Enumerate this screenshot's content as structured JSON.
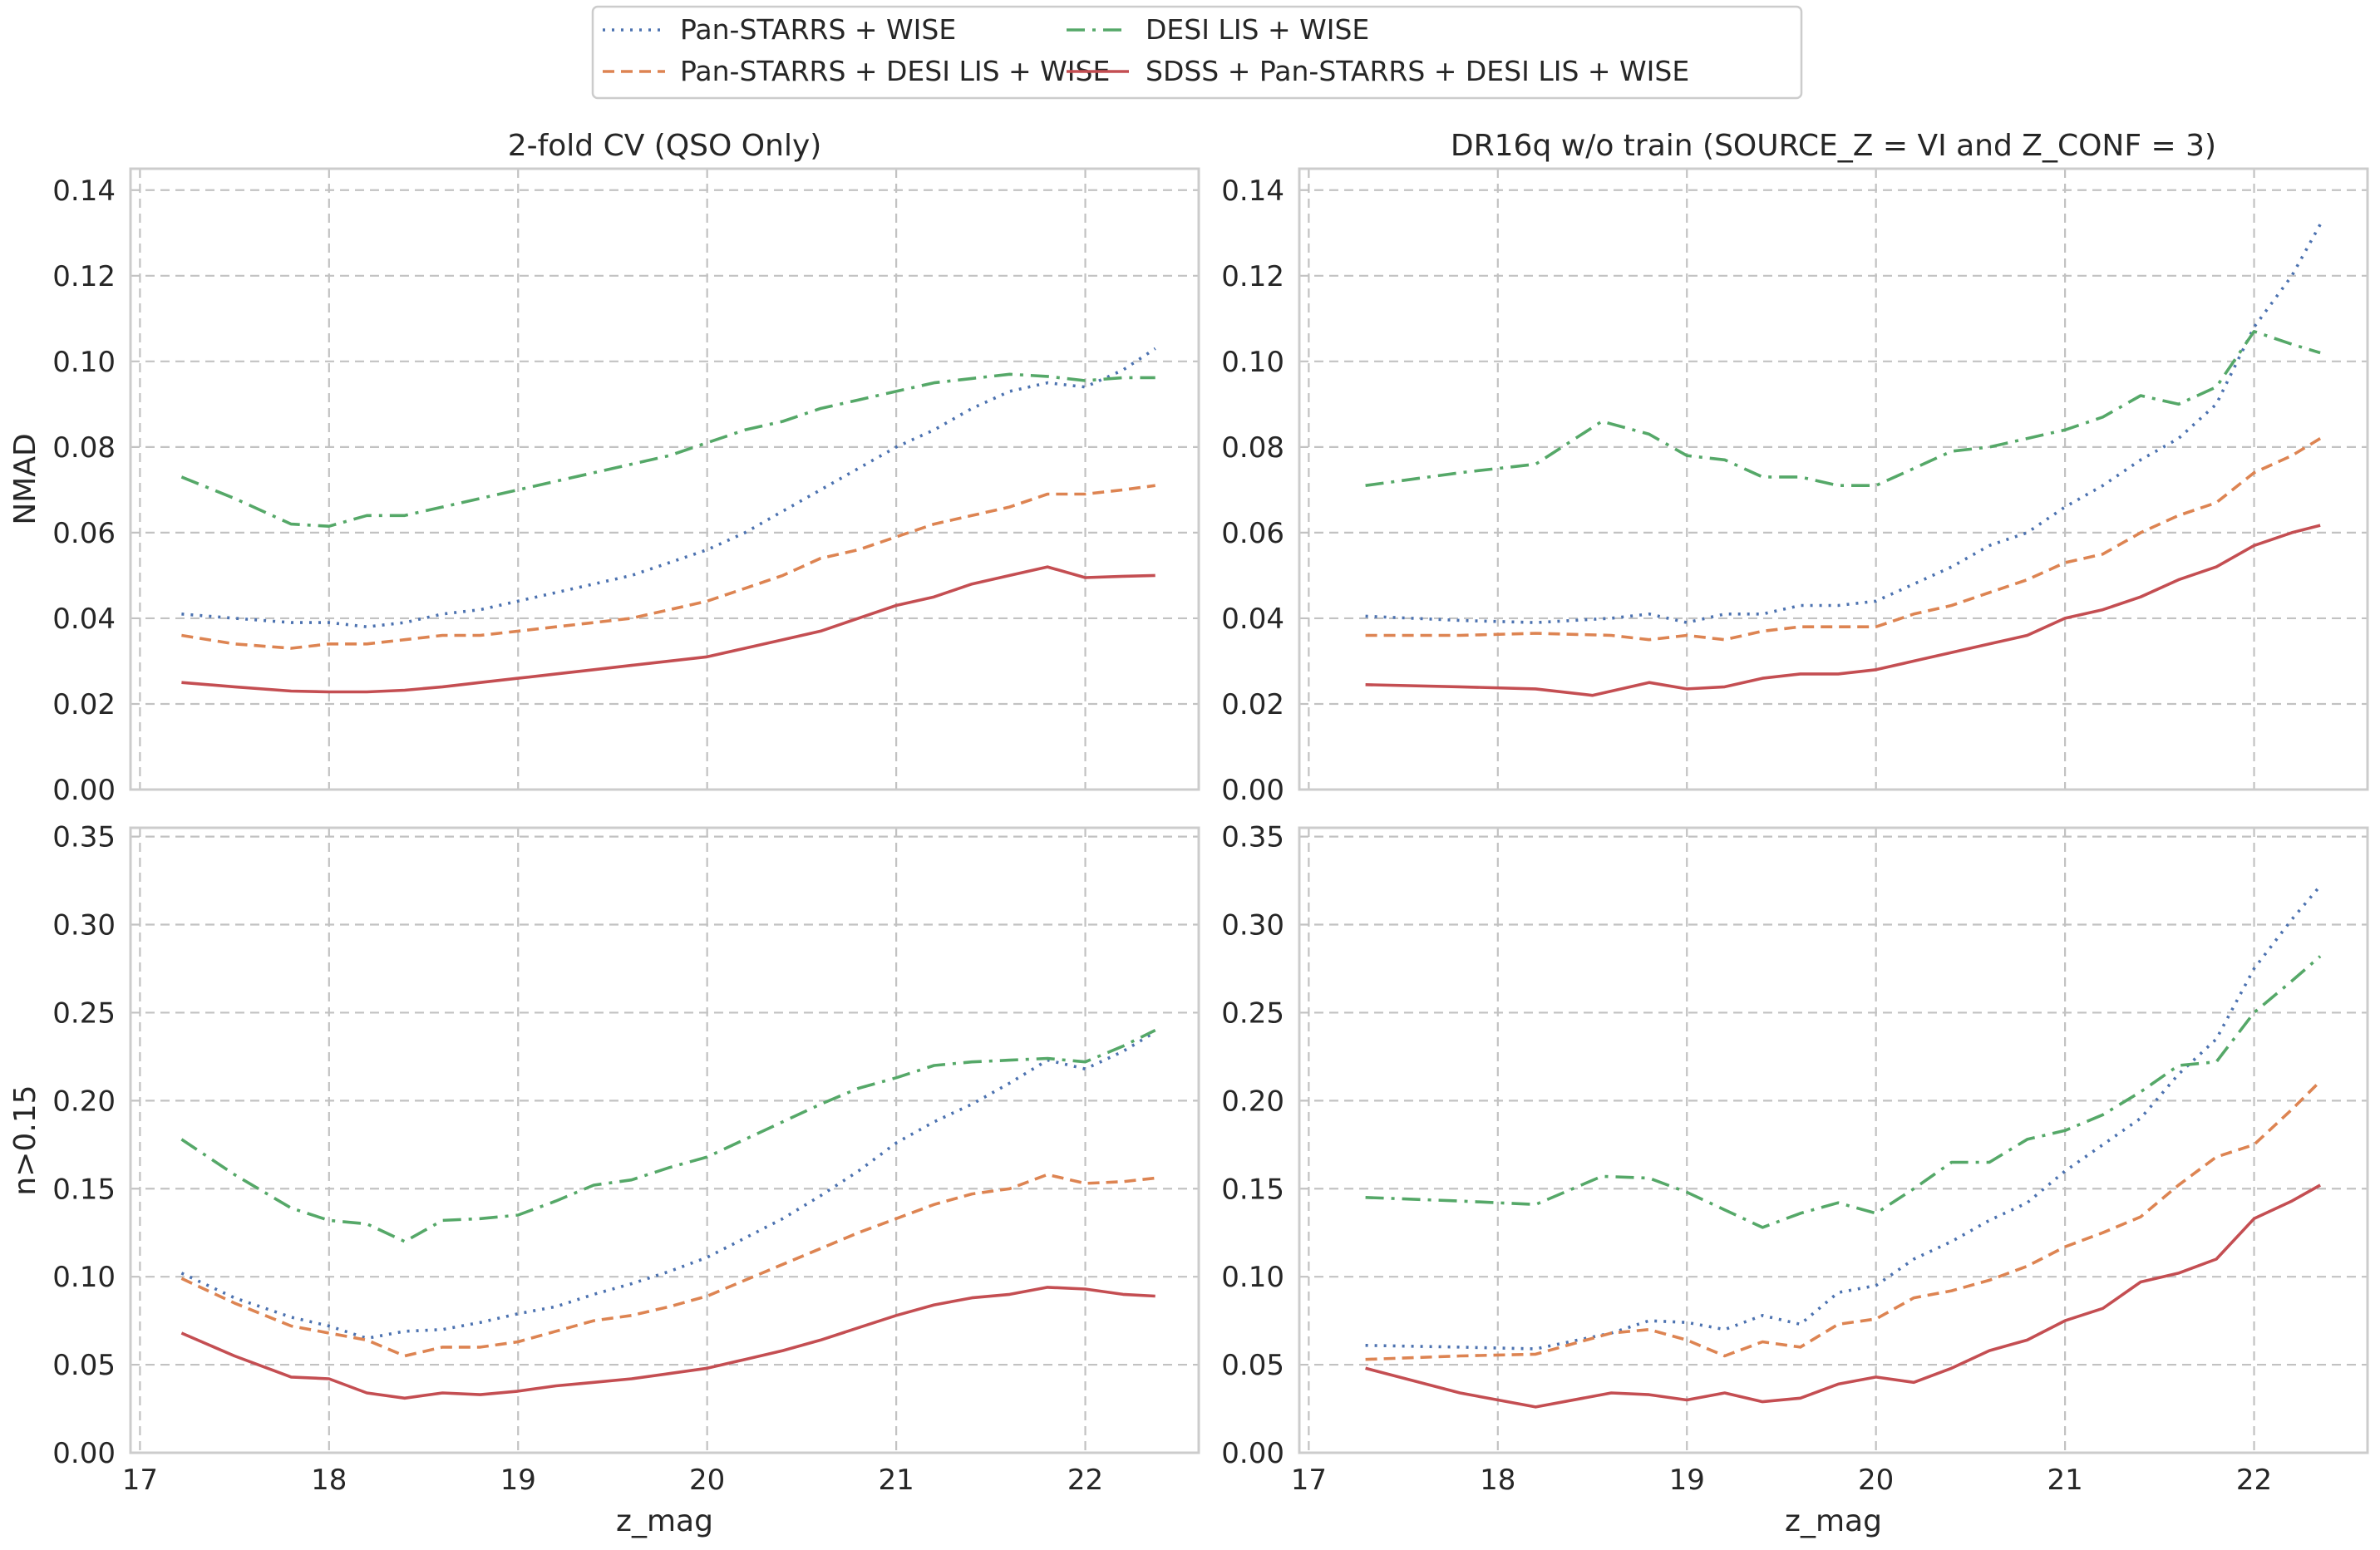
{
  "legend": {
    "items": [
      {
        "label": "Pan-STARRS + WISE",
        "color": "#4c72b0",
        "dash": "3 8",
        "key": "ps"
      },
      {
        "label": "DESI LIS + WISE",
        "color": "#55a868",
        "dash": "22 9 4 9",
        "key": "desi"
      },
      {
        "label": "Pan-STARRS + DESI LIS + WISE",
        "color": "#dd8452",
        "dash": "14 8",
        "key": "psdesi"
      },
      {
        "label": "SDSS + Pan-STARRS + DESI LIS + WISE",
        "color": "#c44e52",
        "dash": "",
        "key": "all"
      }
    ]
  },
  "chart_data": [
    {
      "type": "line",
      "panel": "top-left",
      "title": "2-fold CV (QSO Only)",
      "xlabel": "",
      "ylabel": "NMAD",
      "xlim": [
        16.95,
        22.6
      ],
      "ylim": [
        0,
        0.145
      ],
      "xticks": [
        "17",
        "18",
        "19",
        "20",
        "21",
        "22"
      ],
      "yticks": [
        "0.00",
        "0.02",
        "0.04",
        "0.06",
        "0.08",
        "0.10",
        "0.12",
        "0.14"
      ],
      "grid": true,
      "series": [
        {
          "key": "ps",
          "x": [
            17.22,
            17.5,
            17.8,
            18.0,
            18.2,
            18.4,
            18.6,
            18.8,
            19.0,
            19.2,
            19.4,
            19.6,
            19.8,
            20.0,
            20.2,
            20.4,
            20.6,
            20.8,
            21.0,
            21.2,
            21.4,
            21.6,
            21.8,
            22.0,
            22.2,
            22.37
          ],
          "y": [
            0.041,
            0.04,
            0.039,
            0.039,
            0.038,
            0.039,
            0.041,
            0.042,
            0.044,
            0.046,
            0.048,
            0.05,
            0.053,
            0.056,
            0.06,
            0.065,
            0.07,
            0.075,
            0.08,
            0.084,
            0.089,
            0.093,
            0.095,
            0.094,
            0.098,
            0.103
          ]
        },
        {
          "key": "psdesi",
          "x": [
            17.22,
            17.5,
            17.8,
            18.0,
            18.2,
            18.4,
            18.6,
            18.8,
            19.0,
            19.2,
            19.4,
            19.6,
            19.8,
            20.0,
            20.2,
            20.4,
            20.6,
            20.8,
            21.0,
            21.2,
            21.4,
            21.6,
            21.8,
            22.0,
            22.2,
            22.37
          ],
          "y": [
            0.036,
            0.034,
            0.033,
            0.034,
            0.034,
            0.035,
            0.036,
            0.036,
            0.037,
            0.038,
            0.039,
            0.04,
            0.042,
            0.044,
            0.047,
            0.05,
            0.054,
            0.056,
            0.059,
            0.062,
            0.064,
            0.066,
            0.069,
            0.069,
            0.07,
            0.071
          ]
        },
        {
          "key": "desi",
          "x": [
            17.22,
            17.5,
            17.8,
            18.0,
            18.2,
            18.4,
            18.6,
            18.8,
            19.0,
            19.2,
            19.4,
            19.6,
            19.8,
            20.0,
            20.2,
            20.4,
            20.6,
            20.8,
            21.0,
            21.2,
            21.4,
            21.6,
            21.8,
            22.0,
            22.2,
            22.37
          ],
          "y": [
            0.073,
            0.068,
            0.062,
            0.0615,
            0.064,
            0.064,
            0.066,
            0.068,
            0.07,
            0.072,
            0.074,
            0.076,
            0.078,
            0.081,
            0.084,
            0.086,
            0.089,
            0.091,
            0.093,
            0.095,
            0.096,
            0.097,
            0.0965,
            0.0955,
            0.0962,
            0.0962
          ]
        },
        {
          "key": "all",
          "x": [
            17.22,
            17.5,
            17.8,
            18.0,
            18.2,
            18.4,
            18.6,
            18.8,
            19.0,
            19.2,
            19.4,
            19.6,
            19.8,
            20.0,
            20.2,
            20.4,
            20.6,
            20.8,
            21.0,
            21.2,
            21.4,
            21.6,
            21.8,
            22.0,
            22.2,
            22.37
          ],
          "y": [
            0.025,
            0.024,
            0.023,
            0.0228,
            0.0228,
            0.0232,
            0.024,
            0.025,
            0.026,
            0.027,
            0.028,
            0.029,
            0.03,
            0.031,
            0.033,
            0.035,
            0.037,
            0.04,
            0.043,
            0.045,
            0.048,
            0.05,
            0.052,
            0.0495,
            0.0498,
            0.05
          ]
        }
      ]
    },
    {
      "type": "line",
      "panel": "top-right",
      "title": "DR16q w/o train (SOURCE_Z = VI and Z_CONF = 3)",
      "xlabel": "",
      "ylabel": "",
      "xlim": [
        16.95,
        22.6
      ],
      "ylim": [
        0,
        0.145
      ],
      "xticks": [
        "17",
        "18",
        "19",
        "20",
        "21",
        "22"
      ],
      "yticks": [
        "0.00",
        "0.02",
        "0.04",
        "0.06",
        "0.08",
        "0.10",
        "0.12",
        "0.14"
      ],
      "grid": true,
      "series": [
        {
          "key": "ps",
          "x": [
            17.3,
            17.8,
            18.2,
            18.6,
            18.8,
            19.0,
            19.2,
            19.4,
            19.6,
            19.8,
            20.0,
            20.2,
            20.4,
            20.6,
            20.8,
            21.0,
            21.2,
            21.4,
            21.6,
            21.8,
            22.0,
            22.2,
            22.35
          ],
          "y": [
            0.0405,
            0.0395,
            0.039,
            0.04,
            0.041,
            0.039,
            0.041,
            0.041,
            0.043,
            0.043,
            0.044,
            0.048,
            0.052,
            0.057,
            0.06,
            0.066,
            0.071,
            0.077,
            0.082,
            0.09,
            0.108,
            0.12,
            0.132
          ]
        },
        {
          "key": "psdesi",
          "x": [
            17.3,
            17.8,
            18.2,
            18.6,
            18.8,
            19.0,
            19.2,
            19.4,
            19.6,
            19.8,
            20.0,
            20.2,
            20.4,
            20.6,
            20.8,
            21.0,
            21.2,
            21.4,
            21.6,
            21.8,
            22.0,
            22.2,
            22.35
          ],
          "y": [
            0.036,
            0.036,
            0.0365,
            0.036,
            0.035,
            0.036,
            0.035,
            0.037,
            0.038,
            0.038,
            0.038,
            0.041,
            0.043,
            0.046,
            0.049,
            0.053,
            0.055,
            0.06,
            0.064,
            0.067,
            0.074,
            0.078,
            0.082
          ]
        },
        {
          "key": "desi",
          "x": [
            17.3,
            17.8,
            18.2,
            18.55,
            18.8,
            19.0,
            19.2,
            19.4,
            19.6,
            19.8,
            20.0,
            20.2,
            20.4,
            20.6,
            20.8,
            21.0,
            21.2,
            21.4,
            21.6,
            21.8,
            22.0,
            22.2,
            22.35
          ],
          "y": [
            0.071,
            0.074,
            0.076,
            0.086,
            0.083,
            0.078,
            0.077,
            0.073,
            0.073,
            0.071,
            0.071,
            0.075,
            0.079,
            0.08,
            0.082,
            0.084,
            0.087,
            0.092,
            0.09,
            0.094,
            0.107,
            0.104,
            0.102
          ]
        },
        {
          "key": "all",
          "x": [
            17.3,
            17.8,
            18.2,
            18.5,
            18.8,
            19.0,
            19.2,
            19.4,
            19.6,
            19.8,
            20.0,
            20.2,
            20.4,
            20.6,
            20.8,
            21.0,
            21.2,
            21.4,
            21.6,
            21.8,
            22.0,
            22.2,
            22.35
          ],
          "y": [
            0.0245,
            0.024,
            0.0235,
            0.022,
            0.025,
            0.0235,
            0.024,
            0.026,
            0.027,
            0.027,
            0.028,
            0.03,
            0.032,
            0.034,
            0.036,
            0.04,
            0.042,
            0.045,
            0.049,
            0.052,
            0.057,
            0.06,
            0.0617
          ]
        }
      ]
    },
    {
      "type": "line",
      "panel": "bottom-left",
      "title": "",
      "xlabel": "z_mag",
      "ylabel": "n>0.15",
      "xlim": [
        16.95,
        22.6
      ],
      "ylim": [
        0,
        0.355
      ],
      "xticks": [
        "17",
        "18",
        "19",
        "20",
        "21",
        "22"
      ],
      "yticks": [
        "0.00",
        "0.05",
        "0.10",
        "0.15",
        "0.20",
        "0.25",
        "0.30",
        "0.35"
      ],
      "grid": true,
      "series": [
        {
          "key": "ps",
          "x": [
            17.22,
            17.5,
            17.8,
            18.0,
            18.2,
            18.4,
            18.6,
            18.8,
            19.0,
            19.2,
            19.4,
            19.6,
            19.8,
            20.0,
            20.2,
            20.4,
            20.6,
            20.8,
            21.0,
            21.2,
            21.4,
            21.6,
            21.8,
            22.0,
            22.2,
            22.37
          ],
          "y": [
            0.102,
            0.088,
            0.077,
            0.072,
            0.065,
            0.069,
            0.07,
            0.074,
            0.079,
            0.083,
            0.09,
            0.096,
            0.103,
            0.111,
            0.122,
            0.133,
            0.146,
            0.16,
            0.176,
            0.188,
            0.198,
            0.21,
            0.223,
            0.218,
            0.228,
            0.239
          ]
        },
        {
          "key": "psdesi",
          "x": [
            17.22,
            17.5,
            17.8,
            18.0,
            18.2,
            18.4,
            18.6,
            18.8,
            19.0,
            19.2,
            19.4,
            19.6,
            19.8,
            20.0,
            20.2,
            20.4,
            20.6,
            20.8,
            21.0,
            21.2,
            21.4,
            21.6,
            21.8,
            22.0,
            22.2,
            22.37
          ],
          "y": [
            0.099,
            0.085,
            0.072,
            0.068,
            0.064,
            0.055,
            0.06,
            0.06,
            0.063,
            0.069,
            0.075,
            0.078,
            0.083,
            0.089,
            0.098,
            0.107,
            0.116,
            0.125,
            0.133,
            0.141,
            0.147,
            0.15,
            0.158,
            0.153,
            0.154,
            0.156
          ]
        },
        {
          "key": "desi",
          "x": [
            17.22,
            17.5,
            17.8,
            18.0,
            18.2,
            18.4,
            18.6,
            18.8,
            19.0,
            19.2,
            19.4,
            19.6,
            19.8,
            20.0,
            20.2,
            20.4,
            20.6,
            20.8,
            21.0,
            21.2,
            21.4,
            21.6,
            21.8,
            22.0,
            22.2,
            22.37
          ],
          "y": [
            0.178,
            0.158,
            0.139,
            0.132,
            0.13,
            0.12,
            0.132,
            0.133,
            0.135,
            0.143,
            0.152,
            0.155,
            0.162,
            0.168,
            0.178,
            0.188,
            0.198,
            0.207,
            0.213,
            0.22,
            0.222,
            0.223,
            0.224,
            0.222,
            0.231,
            0.24
          ]
        },
        {
          "key": "all",
          "x": [
            17.22,
            17.5,
            17.8,
            18.0,
            18.2,
            18.4,
            18.6,
            18.8,
            19.0,
            19.2,
            19.4,
            19.6,
            19.8,
            20.0,
            20.2,
            20.4,
            20.6,
            20.8,
            21.0,
            21.2,
            21.4,
            21.6,
            21.8,
            22.0,
            22.2,
            22.37
          ],
          "y": [
            0.068,
            0.055,
            0.043,
            0.042,
            0.034,
            0.031,
            0.034,
            0.033,
            0.035,
            0.038,
            0.04,
            0.042,
            0.045,
            0.048,
            0.053,
            0.058,
            0.064,
            0.071,
            0.078,
            0.084,
            0.088,
            0.09,
            0.094,
            0.093,
            0.09,
            0.089
          ]
        }
      ]
    },
    {
      "type": "line",
      "panel": "bottom-right",
      "title": "",
      "xlabel": "z_mag",
      "ylabel": "",
      "xlim": [
        16.95,
        22.6
      ],
      "ylim": [
        0,
        0.355
      ],
      "xticks": [
        "17",
        "18",
        "19",
        "20",
        "21",
        "22"
      ],
      "yticks": [
        "0.00",
        "0.05",
        "0.10",
        "0.15",
        "0.20",
        "0.25",
        "0.30",
        "0.35"
      ],
      "grid": true,
      "series": [
        {
          "key": "ps",
          "x": [
            17.3,
            17.8,
            18.2,
            18.6,
            18.8,
            19.0,
            19.2,
            19.4,
            19.6,
            19.8,
            20.0,
            20.2,
            20.4,
            20.6,
            20.8,
            21.0,
            21.2,
            21.4,
            21.6,
            21.8,
            22.0,
            22.2,
            22.35
          ],
          "y": [
            0.061,
            0.06,
            0.059,
            0.068,
            0.075,
            0.074,
            0.07,
            0.078,
            0.073,
            0.091,
            0.095,
            0.11,
            0.12,
            0.132,
            0.142,
            0.16,
            0.175,
            0.19,
            0.215,
            0.235,
            0.275,
            0.303,
            0.322
          ]
        },
        {
          "key": "psdesi",
          "x": [
            17.3,
            17.8,
            18.2,
            18.6,
            18.8,
            19.0,
            19.2,
            19.4,
            19.6,
            19.8,
            20.0,
            20.2,
            20.4,
            20.6,
            20.8,
            21.0,
            21.2,
            21.4,
            21.6,
            21.8,
            22.0,
            22.2,
            22.35
          ],
          "y": [
            0.053,
            0.055,
            0.056,
            0.068,
            0.07,
            0.064,
            0.055,
            0.063,
            0.06,
            0.073,
            0.076,
            0.088,
            0.092,
            0.098,
            0.106,
            0.117,
            0.125,
            0.134,
            0.152,
            0.168,
            0.175,
            0.195,
            0.211
          ]
        },
        {
          "key": "desi",
          "x": [
            17.3,
            17.8,
            18.2,
            18.55,
            18.8,
            19.0,
            19.2,
            19.4,
            19.6,
            19.8,
            20.0,
            20.2,
            20.4,
            20.6,
            20.8,
            21.0,
            21.2,
            21.4,
            21.6,
            21.8,
            22.0,
            22.2,
            22.35
          ],
          "y": [
            0.145,
            0.143,
            0.141,
            0.157,
            0.156,
            0.148,
            0.138,
            0.128,
            0.136,
            0.142,
            0.136,
            0.15,
            0.165,
            0.165,
            0.178,
            0.183,
            0.192,
            0.205,
            0.22,
            0.222,
            0.25,
            0.268,
            0.282
          ]
        },
        {
          "key": "all",
          "x": [
            17.3,
            17.8,
            18.2,
            18.6,
            18.8,
            19.0,
            19.2,
            19.4,
            19.6,
            19.8,
            20.0,
            20.2,
            20.4,
            20.6,
            20.8,
            21.0,
            21.2,
            21.4,
            21.6,
            21.8,
            22.0,
            22.2,
            22.35
          ],
          "y": [
            0.048,
            0.034,
            0.026,
            0.034,
            0.033,
            0.03,
            0.034,
            0.029,
            0.031,
            0.039,
            0.043,
            0.04,
            0.048,
            0.058,
            0.064,
            0.075,
            0.082,
            0.097,
            0.102,
            0.11,
            0.133,
            0.143,
            0.152
          ]
        }
      ]
    }
  ]
}
